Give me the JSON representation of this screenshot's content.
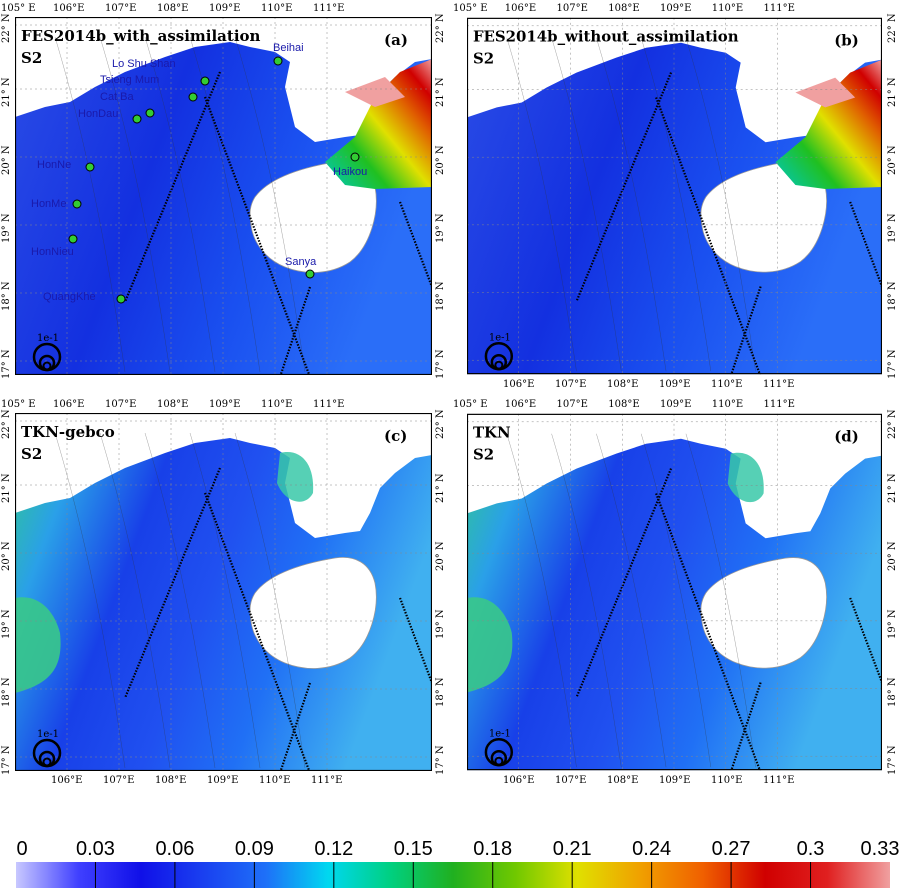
{
  "panels": [
    {
      "title": "FES2014b_with_assimilation",
      "constituent": "S2",
      "letter": "(a)",
      "show_bottom_labels": false,
      "variant": "fes",
      "scale_label": "1e-1"
    },
    {
      "title": "FES2014b_without_assimilation",
      "constituent": "S2",
      "letter": "(b)",
      "show_bottom_labels": true,
      "variant": "fes",
      "scale_label": "1e-1"
    },
    {
      "title": "TKN-gebco",
      "constituent": "S2",
      "letter": "(c)",
      "show_bottom_labels": true,
      "variant": "tkn",
      "scale_label": "1e-1"
    },
    {
      "title": "TKN",
      "constituent": "S2",
      "letter": "(d)",
      "show_bottom_labels": true,
      "variant": "tkn",
      "scale_label": "1e-1"
    }
  ],
  "top_lon_ticks": [
    "105° E",
    "106°E",
    "107°E",
    "108°E",
    "109°E",
    "110°E",
    "111°E"
  ],
  "bottom_lon_ticks": [
    "106°E",
    "107°E",
    "108°E",
    "109°E",
    "110°E",
    "111°E"
  ],
  "lat_ticks": [
    "22° N",
    "21° N",
    "20° N",
    "19° N",
    "18° N",
    "17° N"
  ],
  "stations": [
    {
      "name": "Beihai"
    },
    {
      "name": "Lo Shu Shan"
    },
    {
      "name": "Tsieng Mum"
    },
    {
      "name": "Cat Ba"
    },
    {
      "name": "HonDau"
    },
    {
      "name": "HonNe"
    },
    {
      "name": "HonMe"
    },
    {
      "name": "HonNieu"
    },
    {
      "name": "QuangKhe"
    },
    {
      "name": "Haikou"
    },
    {
      "name": "Sanya"
    }
  ],
  "colorbar": {
    "ticks": [
      "0",
      "0.03",
      "0.06",
      "0.09",
      "0.12",
      "0.15",
      "0.18",
      "0.21",
      "0.24",
      "0.27",
      "0.3",
      "0.33"
    ],
    "colors": [
      "#c8c8ff",
      "#4040ff",
      "#1010e8",
      "#1a40f0",
      "#1e70f8",
      "#00d8f0",
      "#00d080",
      "#20b020",
      "#70c800",
      "#e0e000",
      "#f0a000",
      "#f06000",
      "#d00000",
      "#e02020",
      "#f0a0a0"
    ]
  },
  "colors": {
    "station_marker": "#33cc33",
    "station_label": "#1a1aaa",
    "coast": "#999999"
  }
}
